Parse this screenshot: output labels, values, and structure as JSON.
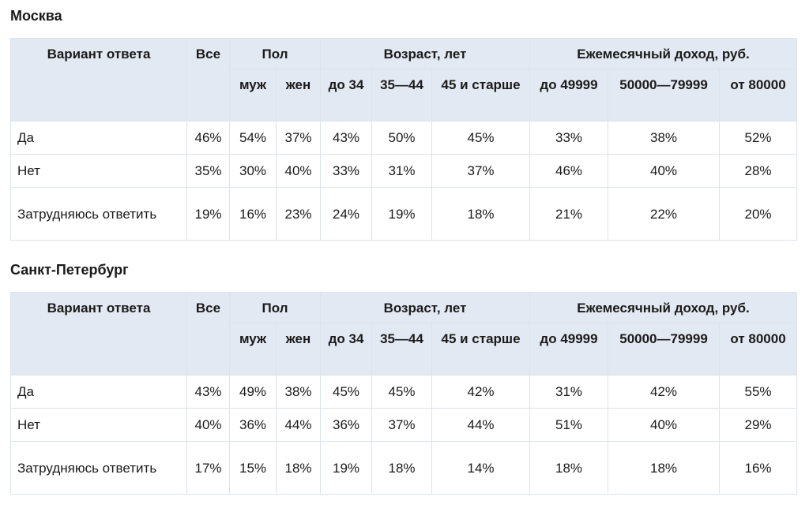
{
  "header": {
    "answer": "Вариант ответа",
    "all": "Все",
    "gender": "Пол",
    "age": "Возраст, лет",
    "income": "Ежемесячный доход, руб.",
    "male": "муж",
    "female": "жен",
    "age_groups": [
      "до 34",
      "35—44",
      "45 и старше"
    ],
    "income_groups": [
      "до 49999",
      "50000—79999",
      "от 80000"
    ]
  },
  "tables": [
    {
      "city": "Москва",
      "rows": [
        {
          "label": "Да",
          "values": [
            "46%",
            "54%",
            "37%",
            "43%",
            "50%",
            "45%",
            "33%",
            "38%",
            "52%"
          ]
        },
        {
          "label": "Нет",
          "values": [
            "35%",
            "30%",
            "40%",
            "33%",
            "31%",
            "37%",
            "46%",
            "40%",
            "28%"
          ]
        },
        {
          "label": "Затрудняюсь ответить",
          "values": [
            "19%",
            "16%",
            "23%",
            "24%",
            "19%",
            "18%",
            "21%",
            "22%",
            "20%"
          ]
        }
      ]
    },
    {
      "city": "Санкт-Петербург",
      "rows": [
        {
          "label": "Да",
          "values": [
            "43%",
            "49%",
            "38%",
            "45%",
            "45%",
            "42%",
            "31%",
            "42%",
            "55%"
          ]
        },
        {
          "label": "Нет",
          "values": [
            "40%",
            "36%",
            "44%",
            "36%",
            "37%",
            "44%",
            "51%",
            "40%",
            "29%"
          ]
        },
        {
          "label": "Затрудняюсь ответить",
          "values": [
            "17%",
            "15%",
            "18%",
            "19%",
            "18%",
            "14%",
            "18%",
            "18%",
            "16%"
          ]
        }
      ]
    }
  ]
}
